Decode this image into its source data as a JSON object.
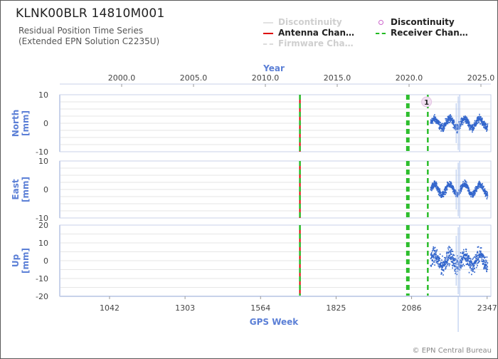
{
  "title": "KLNK00BLR 14810M001",
  "subtitle": [
    "Residual Position Time Series",
    "(Extended EPN Solution C2235U)"
  ],
  "legend": [
    {
      "label": "Discontinuity",
      "color": "#dddddd",
      "style": "solid",
      "faded": true
    },
    {
      "label": "Discontinuity",
      "color": "#cc66cc",
      "style": "marker",
      "faded": false
    },
    {
      "label": "Antenna Chan…",
      "color": "#dd0000",
      "style": "solid",
      "faded": false
    },
    {
      "label": "Receiver Chan…",
      "color": "#22bb22",
      "style": "dashed",
      "faded": false
    },
    {
      "label": "Firmware Cha…",
      "color": "#cccccc",
      "style": "dashed",
      "faded": true
    }
  ],
  "copyright": "© EPN Central Bureau",
  "colors": {
    "axis": "#5b7fd6",
    "data": "#3366cc",
    "grid": "#e6e6e6",
    "antenna": "#dd0000",
    "receiver": "#22bb22"
  },
  "chart_data": {
    "type": "scatter",
    "top_axis": {
      "label": "Year",
      "ticks": [
        "2000.0",
        "2005.0",
        "2010.0",
        "2015.0",
        "2020.0",
        "2025.0"
      ]
    },
    "bottom_axis": {
      "label": "GPS Week",
      "ticks": [
        1042,
        1303,
        1564,
        1825,
        2086,
        2347
      ],
      "range": [
        870,
        2360
      ]
    },
    "panels": [
      {
        "name": "North",
        "ylabel": "North\n[mm]",
        "ylim": [
          -10,
          10
        ],
        "yticks": [
          10,
          0,
          -10
        ],
        "amplitude": 1.5,
        "noise": 1.0
      },
      {
        "name": "East",
        "ylabel": "East\n[mm]",
        "ylim": [
          -10,
          10
        ],
        "yticks": [
          10,
          0,
          -10
        ],
        "amplitude": 1.8,
        "noise": 0.9
      },
      {
        "name": "Up",
        "ylabel": "Up\n[mm]",
        "ylim": [
          -20,
          20
        ],
        "yticks": [
          20,
          10,
          0,
          -10,
          -20
        ],
        "amplitude": 3.0,
        "noise": 3.5
      }
    ],
    "data_week_range": [
      2150,
      2347
    ],
    "antenna_change_weeks": [
      1700
    ],
    "receiver_change_weeks": [
      1700,
      2070,
      2076,
      2142
    ],
    "discontinuity_markers": [
      {
        "week": 2150,
        "label": "1"
      }
    ]
  }
}
